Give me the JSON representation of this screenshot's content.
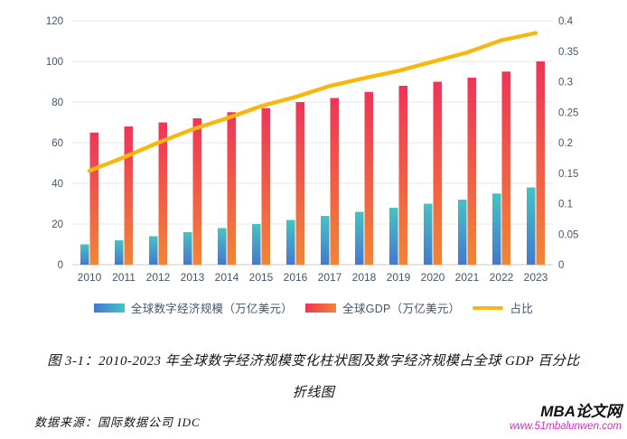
{
  "chart_data": {
    "type": "bar+line combo",
    "title": "",
    "categories": [
      "2010",
      "2011",
      "2012",
      "2013",
      "2014",
      "2015",
      "2016",
      "2017",
      "2018",
      "2019",
      "2020",
      "2021",
      "2022",
      "2023"
    ],
    "series": [
      {
        "key": "digital",
        "name": "全球数字经济规模（万亿美元）",
        "type": "bar",
        "axis": "left",
        "values": [
          10,
          12,
          14,
          16,
          18,
          20,
          22,
          24,
          26,
          28,
          30,
          32,
          35,
          38
        ],
        "gradient_top": "#43C4C4",
        "gradient_bottom": "#4478D1"
      },
      {
        "key": "gdp",
        "name": "全球GDP（万亿美元）",
        "type": "bar",
        "axis": "left",
        "values": [
          65,
          68,
          70,
          72,
          75,
          77,
          80,
          82,
          85,
          88,
          90,
          92,
          95,
          100
        ],
        "gradient_top": "#EE3558",
        "gradient_bottom": "#F08537"
      },
      {
        "key": "ratio",
        "name": "占比",
        "type": "line",
        "axis": "right",
        "values": [
          0.154,
          0.176,
          0.2,
          0.222,
          0.24,
          0.26,
          0.275,
          0.293,
          0.306,
          0.318,
          0.333,
          0.348,
          0.368,
          0.38
        ],
        "color": "#F6B70F"
      }
    ],
    "left_axis": {
      "min": 0,
      "max": 120,
      "ticks": [
        0,
        20,
        40,
        60,
        80,
        100,
        120
      ]
    },
    "right_axis": {
      "min": 0,
      "max": 0.4,
      "ticks": [
        0,
        0.05,
        0.1,
        0.15,
        0.2,
        0.25,
        0.3,
        0.35,
        0.4
      ]
    },
    "grid": true,
    "legend_position": "bottom"
  },
  "styles": {
    "axis_text_color": "#44546A",
    "grid_color": "#E7E7E7",
    "axis_line_color": "#C9C9C9",
    "watermark_url_color": "#E91EC8"
  },
  "caption": {
    "line1": "图 3-1：2010-2023 年全球数字经济规模变化柱状图及数字经济规模占全球 GDP 百分比",
    "line2": "折线图"
  },
  "source": {
    "text": "数据来源：国际数据公司 IDC"
  },
  "watermark": {
    "site_name": "MBA论文网",
    "site_url": "www.51mbalunwen.com"
  }
}
